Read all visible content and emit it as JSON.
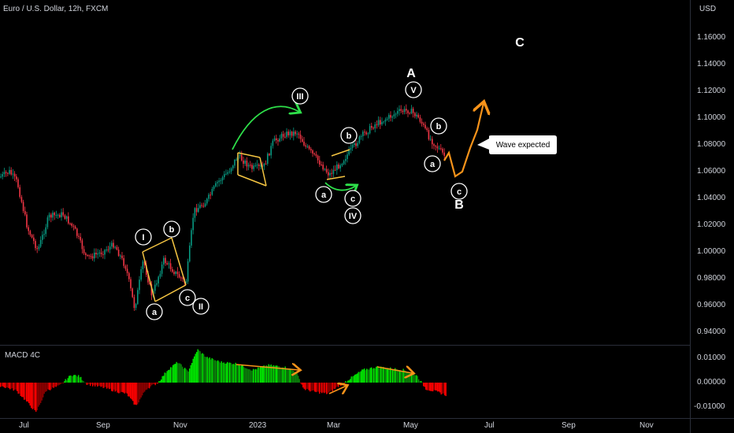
{
  "header": {
    "symbol_title": "Euro / U.S. Dollar, 12h, FXCM"
  },
  "price_axis": {
    "currency": "USD",
    "ticks": [
      "1.16000",
      "1.14000",
      "1.12000",
      "1.10000",
      "1.08000",
      "1.06000",
      "1.04000",
      "1.02000",
      "1.00000",
      "0.98000",
      "0.96000",
      "0.94000"
    ]
  },
  "indicator": {
    "title": "MACD 4C",
    "ticks": [
      "0.01000",
      "0.00000",
      "-0.01000"
    ]
  },
  "time_axis": {
    "ticks": [
      "Jul",
      "Sep",
      "Nov",
      "2023",
      "Mar",
      "May",
      "Jul",
      "Sep",
      "Nov"
    ]
  },
  "annotations": {
    "wave_labels": [
      "I",
      "II",
      "III",
      "IV",
      "V",
      "a",
      "b",
      "c",
      "A",
      "B",
      "C"
    ],
    "callout": "Wave expected"
  },
  "colors": {
    "background": "#000000",
    "up": "#089981",
    "down": "#f23645",
    "macd_up": "#00e600",
    "macd_down": "#ff0000",
    "trend_lines": "#f5c542",
    "arrow_green": "#2ee04a",
    "arrow_orange": "#f7931a",
    "text": "#d1d4dc"
  }
}
